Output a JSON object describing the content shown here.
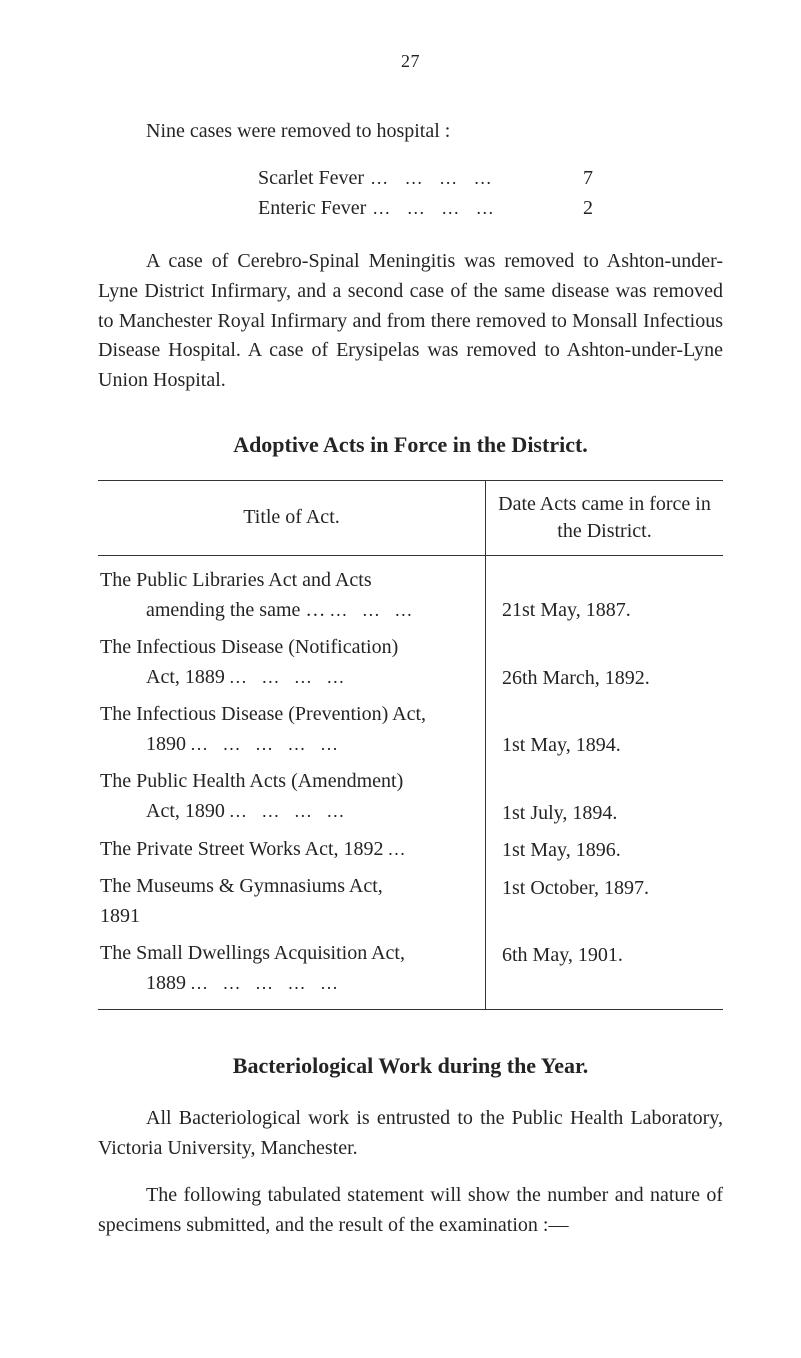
{
  "page_number": "27",
  "intro_line": "Nine cases were removed to hospital :",
  "fever_rows": [
    {
      "label": "Scarlet Fever",
      "value": "7"
    },
    {
      "label": "Enteric Fever",
      "value": "2"
    }
  ],
  "narrative": "A case of Cerebro-Spinal Meningitis was removed to Ashton-under-Lyne District Infirmary, and a second case of the same disease was removed to Manchester Royal Infirmary and from there removed to Monsall Infectious Disease Hospital. A case of Erysipelas was removed to Ashton-under-Lyne Union Hospital.",
  "adoptive_heading": "Adoptive Acts in Force in the District.",
  "table": {
    "header_left": "Title of Act.",
    "header_right": "Date Acts came in force in the District.",
    "rows": [
      {
        "title_l1": "The Public Libraries Act and Acts",
        "title_l2": "amending the same …",
        "date": "21st May, 1887."
      },
      {
        "title_l1": "The Infectious Disease (Notification)",
        "title_l2": "Act, 1889",
        "date": "26th March, 1892."
      },
      {
        "title_l1": "The Infectious Disease (Prevention) Act,",
        "title_l2": "1890",
        "date": "1st May, 1894."
      },
      {
        "title_l1": "The Public Health Acts (Amendment)",
        "title_l2": "Act, 1890",
        "date": "1st July, 1894."
      },
      {
        "title_single": "The Private Street Works Act, 1892",
        "date": "1st May, 1896."
      },
      {
        "title_single": "The Museums & Gymnasiums Act, 1891",
        "date": "1st October, 1897."
      },
      {
        "title_l1": "The Small Dwellings Acquisition Act,",
        "title_l2": "1889",
        "date": "6th May, 1901."
      }
    ]
  },
  "bact_heading": "Bacteriological Work during the Year.",
  "bact_para1": "All Bacteriological work is entrusted to the Public Health Laboratory, Victoria University, Manchester.",
  "bact_para2": "The following tabulated statement will show the number and nature of specimens submitted, and the result of the examination :—",
  "colors": {
    "text": "#242424",
    "rule": "#333333",
    "background": "#ffffff"
  },
  "typography": {
    "body_pt": 20,
    "heading_pt": 22,
    "page_num_pt": 18,
    "font_family": "Times New Roman"
  }
}
